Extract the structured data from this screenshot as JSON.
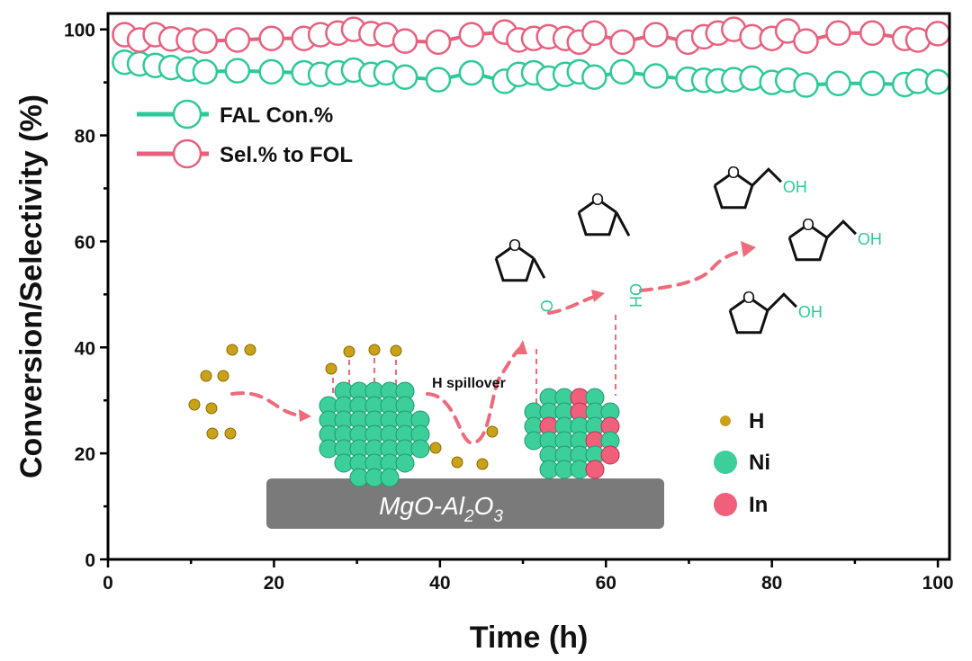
{
  "chart_data": {
    "type": "line",
    "xlabel": "Time (h)",
    "ylabel": "Conversion/Selectivity (%)",
    "xlim": [
      0,
      101.4
    ],
    "ylim": [
      0,
      103
    ],
    "xticks": [
      "0",
      "20",
      "40",
      "60",
      "80",
      "100"
    ],
    "yticks": [
      "0",
      "20",
      "40",
      "60",
      "80",
      "100"
    ],
    "grid": false,
    "legend_position": "top-left",
    "x": [
      2,
      3.8,
      5.7,
      7.6,
      9.7,
      11.7,
      15.6,
      19.7,
      23.6,
      25.6,
      27.7,
      29.6,
      31.7,
      33.5,
      35.8,
      39.8,
      43.8,
      47.8,
      49.5,
      51.3,
      53.1,
      55.1,
      56.8,
      58.6,
      62,
      66,
      69.9,
      71.8,
      73.5,
      75.4,
      77.6,
      80,
      81.9,
      84.1,
      88,
      92.1,
      96,
      97.6,
      100
    ],
    "series": [
      {
        "name": "FAL Con.%",
        "color": "#2ec99a",
        "marker": "open-circle",
        "values": [
          93.8,
          93.5,
          93.2,
          92.8,
          92.5,
          92.0,
          92.2,
          92.0,
          91.8,
          91.5,
          91.8,
          92.3,
          91.5,
          91.8,
          91.0,
          90.5,
          91.8,
          90.2,
          91.5,
          91.8,
          90.8,
          91.5,
          92.0,
          91.0,
          92.0,
          91.2,
          90.6,
          90.4,
          90.3,
          90.5,
          90.8,
          90.0,
          90.4,
          89.5,
          89.8,
          89.8,
          89.6,
          90.2,
          90.1
        ]
      },
      {
        "name": "Sel.% to FOL",
        "color": "#e8607e",
        "marker": "open-circle",
        "values": [
          99.0,
          98.0,
          99.0,
          98.2,
          98.0,
          97.8,
          98.0,
          98.3,
          98.3,
          99.0,
          99.3,
          100.0,
          99.2,
          99.0,
          97.8,
          97.6,
          99.0,
          99.5,
          98.0,
          98.3,
          98.6,
          98.3,
          97.6,
          99.3,
          97.6,
          99.0,
          97.6,
          98.6,
          99.3,
          100.0,
          98.6,
          98.3,
          99.7,
          97.8,
          99.3,
          99.3,
          98.3,
          98.0,
          99.2
        ]
      }
    ]
  },
  "scheme": {
    "spillover_label": "H spillover",
    "support_label_main": "MgO-Al",
    "support_sub1": "2",
    "support_mid": "O",
    "support_sub2": "3",
    "oh_label": "OH",
    "carbonyl_o": "O",
    "ring_o": "O",
    "vertical_oh": "OH",
    "legend": [
      {
        "label": "H",
        "color": "#c9a21a"
      },
      {
        "label": "Ni",
        "color": "#3ccf9a"
      },
      {
        "label": "In",
        "color": "#f0607a"
      }
    ],
    "arrow_color": "#ee6b7c",
    "support_color": "#7a7a7a"
  }
}
